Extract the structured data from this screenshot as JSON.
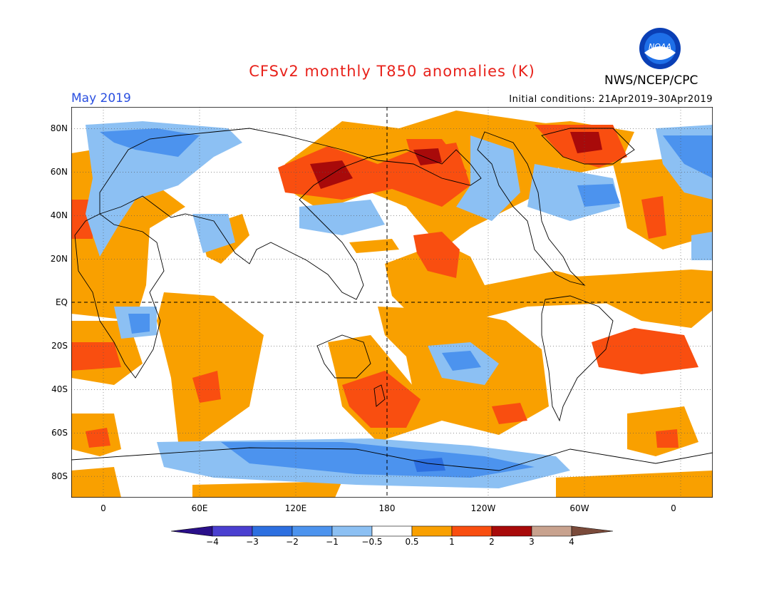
{
  "title": "CFSv2 monthly T850 anomalies (K)",
  "agency": "NWS/NCEP/CPC",
  "logo_text": "NOAA",
  "month": "May 2019",
  "initial_conditions": "Initial conditions: 21Apr2019–30Apr2019",
  "lat_labels": [
    "80N",
    "60N",
    "40N",
    "20N",
    "EQ",
    "20S",
    "40S",
    "60S",
    "80S"
  ],
  "lon_labels": [
    "0",
    "60E",
    "120E",
    "180",
    "120W",
    "60W",
    "0"
  ],
  "colorbar": {
    "labels": [
      "−4",
      "−3",
      "−2",
      "−1",
      "−0.5",
      "0.5",
      "1",
      "2",
      "3",
      "4"
    ],
    "colors": [
      "#2a0f8a",
      "#4a3fd0",
      "#2d6fe0",
      "#4c93ee",
      "#8cc0f3",
      "#ffffff",
      "#f9a000",
      "#f94e10",
      "#a80a0a",
      "#c8a28e",
      "#7a4a3a"
    ]
  },
  "colors": {
    "neg_weak": "#8cc0f3",
    "neg_mid": "#4c93ee",
    "neg_strong": "#2d6fe0",
    "pos_weak": "#f9a000",
    "pos_mid": "#f94e10",
    "pos_strong": "#a80a0a"
  }
}
